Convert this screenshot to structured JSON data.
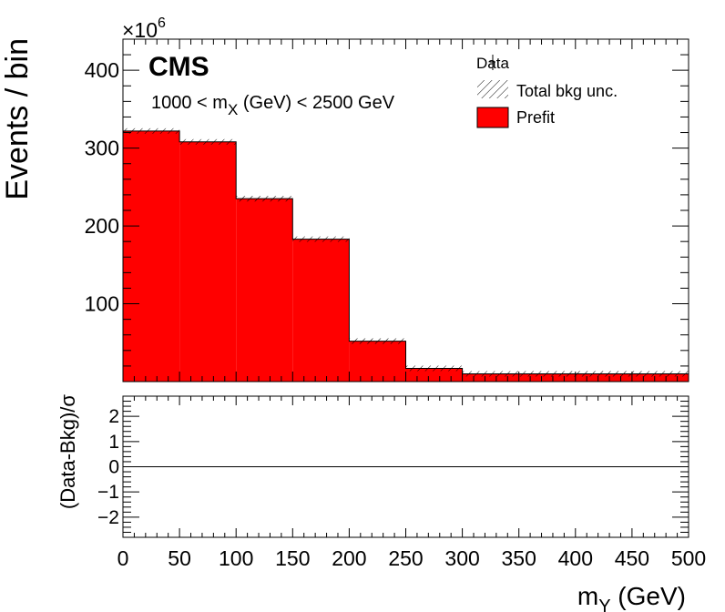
{
  "chart_data": [
    {
      "type": "bar",
      "subtype": "step-histogram",
      "xlabel_main": "m",
      "xlabel_sub": "Y",
      "xlabel_unit": " (GeV)",
      "ylabel": "Events / bin",
      "multiplier": "×10",
      "multiplier_exp": "6",
      "experiment": "CMS",
      "annotation": {
        "prefix": "1000 < m",
        "sub": "X",
        "suffix": " (GeV) < 2500 GeV"
      },
      "legend": {
        "position": "top-right",
        "entries": [
          {
            "label": "Data",
            "style": "marker"
          },
          {
            "label": "Total bkg unc.",
            "style": "hatched"
          },
          {
            "label": "Prefit",
            "style": "filled",
            "color": "#ff0000"
          }
        ]
      },
      "bin_edges": [
        0,
        50,
        100,
        150,
        200,
        250,
        300,
        350,
        400,
        450,
        500
      ],
      "values": [
        322,
        308,
        235,
        183,
        52,
        17,
        10,
        10,
        10,
        10
      ],
      "fill_color": "#ff0000",
      "xlim": [
        0,
        500
      ],
      "ylim": [
        0,
        440
      ],
      "ytick_values": [
        100,
        200,
        300,
        400
      ],
      "ytick_labels": [
        "100",
        "200",
        "300",
        "400"
      ]
    },
    {
      "type": "line",
      "ylabel": "(Data-Bkg)/σ",
      "xlim": [
        0,
        500
      ],
      "ylim": [
        -2.8,
        2.8
      ],
      "reference_line_y": 0,
      "ytick_values": [
        -2,
        -1,
        0,
        1,
        2
      ],
      "ytick_labels": [
        "−2",
        "−1",
        "0",
        "1",
        "2"
      ],
      "xtick_values": [
        0,
        50,
        100,
        150,
        200,
        250,
        300,
        350,
        400,
        450,
        500
      ],
      "xtick_labels": [
        "0",
        "50",
        "100",
        "150",
        "200",
        "250",
        "300",
        "350",
        "400",
        "450",
        "500"
      ]
    }
  ]
}
